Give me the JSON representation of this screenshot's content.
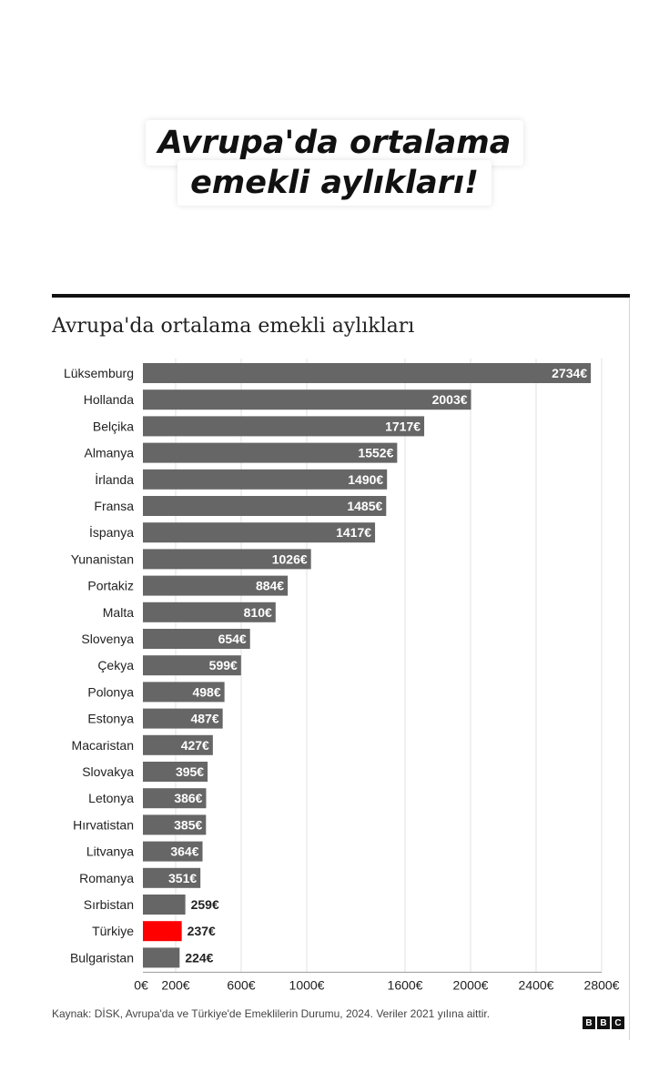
{
  "headline": {
    "line1": "Avrupa'da ortalama",
    "line2": "emekli aylıkları!"
  },
  "chart_data": {
    "type": "bar",
    "orientation": "horizontal",
    "title": "Avrupa'da ortalama emekli aylıkları",
    "categories": [
      "Lüksemburg",
      "Hollanda",
      "Belçika",
      "Almanya",
      "İrlanda",
      "Fransa",
      "İspanya",
      "Yunanistan",
      "Portakiz",
      "Malta",
      "Slovenya",
      "Çekya",
      "Polonya",
      "Estonya",
      "Macaristan",
      "Slovakya",
      "Letonya",
      "Hırvatistan",
      "Litvanya",
      "Romanya",
      "Sırbistan",
      "Türkiye",
      "Bulgaristan"
    ],
    "values": [
      2734,
      2003,
      1717,
      1552,
      1490,
      1485,
      1417,
      1026,
      884,
      810,
      654,
      599,
      498,
      487,
      427,
      395,
      386,
      385,
      364,
      351,
      259,
      237,
      224
    ],
    "value_labels": [
      "2734€",
      "2003€",
      "1717€",
      "1552€",
      "1490€",
      "1485€",
      "1417€",
      "1026€",
      "884€",
      "810€",
      "654€",
      "599€",
      "498€",
      "487€",
      "427€",
      "395€",
      "386€",
      "385€",
      "364€",
      "351€",
      "259€",
      "237€",
      "224€"
    ],
    "highlight": "Türkiye",
    "x_ticks": [
      0,
      200,
      600,
      1000,
      1600,
      2000,
      2400,
      2800
    ],
    "x_tick_labels": [
      "0€",
      "200€",
      "600€",
      "1000€",
      "1600€",
      "2000€",
      "2400€",
      "2800€"
    ],
    "xlim": [
      0,
      2800
    ],
    "grid": true,
    "colors": {
      "bar": "#666666",
      "highlight": "#ff0000",
      "label_inside": "#ffffff",
      "label_outside": "#222222",
      "grid": "#e2e2e2"
    }
  },
  "footer": {
    "source": "Kaynak: DİSK, Avrupa'da ve Türkiye'de Emeklilerin Durumu, 2024. Veriler 2021 yılına aittir.",
    "logo_letters": [
      "B",
      "B",
      "C"
    ]
  }
}
